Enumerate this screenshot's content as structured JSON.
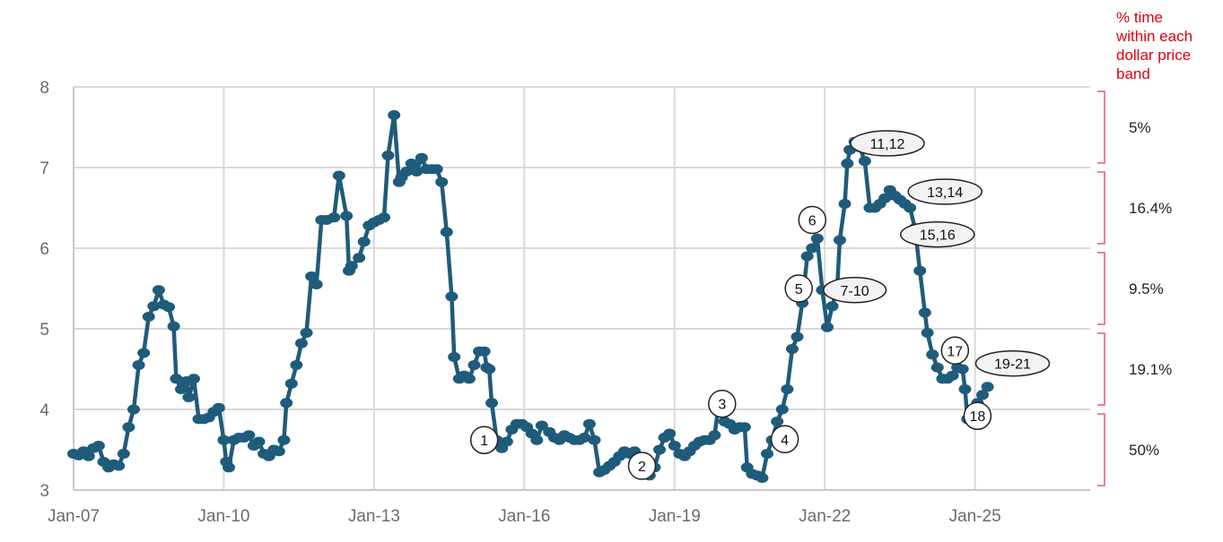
{
  "chart_data": {
    "type": "line",
    "title": "",
    "xlabel": "",
    "ylabel": "",
    "xlim": [
      2007,
      2027.3
    ],
    "ylim": [
      3,
      8
    ],
    "y_ticks": [
      "3",
      "4",
      "5",
      "6",
      "7",
      "8"
    ],
    "x_ticks": [
      {
        "label": "Jan-07",
        "x": 2007
      },
      {
        "label": "Jan-10",
        "x": 2010
      },
      {
        "label": "Jan-13",
        "x": 2013
      },
      {
        "label": "Jan-16",
        "x": 2016
      },
      {
        "label": "Jan-19",
        "x": 2019
      },
      {
        "label": "Jan-22",
        "x": 2022
      },
      {
        "label": "Jan-25",
        "x": 2025
      }
    ],
    "grid": true,
    "series": [
      {
        "color": "#1f5b7a",
        "points": [
          [
            2007.0,
            3.45
          ],
          [
            2007.1,
            3.43
          ],
          [
            2007.2,
            3.48
          ],
          [
            2007.3,
            3.42
          ],
          [
            2007.4,
            3.52
          ],
          [
            2007.5,
            3.55
          ],
          [
            2007.6,
            3.35
          ],
          [
            2007.7,
            3.28
          ],
          [
            2007.8,
            3.32
          ],
          [
            2007.9,
            3.3
          ],
          [
            2008.0,
            3.45
          ],
          [
            2008.1,
            3.78
          ],
          [
            2008.2,
            4.0
          ],
          [
            2008.3,
            4.55
          ],
          [
            2008.4,
            4.7
          ],
          [
            2008.5,
            5.15
          ],
          [
            2008.6,
            5.28
          ],
          [
            2008.7,
            5.48
          ],
          [
            2008.8,
            5.3
          ],
          [
            2008.9,
            5.27
          ],
          [
            2009.0,
            5.03
          ],
          [
            2009.05,
            4.38
          ],
          [
            2009.15,
            4.25
          ],
          [
            2009.25,
            4.35
          ],
          [
            2009.3,
            4.15
          ],
          [
            2009.4,
            4.38
          ],
          [
            2009.5,
            3.88
          ],
          [
            2009.6,
            3.88
          ],
          [
            2009.7,
            3.9
          ],
          [
            2009.8,
            3.97
          ],
          [
            2009.9,
            4.02
          ],
          [
            2010.0,
            3.62
          ],
          [
            2010.05,
            3.35
          ],
          [
            2010.1,
            3.28
          ],
          [
            2010.2,
            3.62
          ],
          [
            2010.3,
            3.65
          ],
          [
            2010.4,
            3.65
          ],
          [
            2010.5,
            3.68
          ],
          [
            2010.6,
            3.55
          ],
          [
            2010.7,
            3.6
          ],
          [
            2010.8,
            3.45
          ],
          [
            2010.9,
            3.42
          ],
          [
            2011.0,
            3.5
          ],
          [
            2011.1,
            3.48
          ],
          [
            2011.2,
            3.62
          ],
          [
            2011.25,
            4.08
          ],
          [
            2011.35,
            4.32
          ],
          [
            2011.45,
            4.55
          ],
          [
            2011.55,
            4.82
          ],
          [
            2011.65,
            4.95
          ],
          [
            2011.75,
            5.65
          ],
          [
            2011.85,
            5.55
          ],
          [
            2011.95,
            6.35
          ],
          [
            2012.05,
            6.35
          ],
          [
            2012.2,
            6.38
          ],
          [
            2012.3,
            6.9
          ],
          [
            2012.45,
            6.4
          ],
          [
            2012.5,
            5.72
          ],
          [
            2012.55,
            5.78
          ],
          [
            2012.7,
            5.88
          ],
          [
            2012.8,
            6.08
          ],
          [
            2012.9,
            6.28
          ],
          [
            2013.0,
            6.32
          ],
          [
            2013.1,
            6.35
          ],
          [
            2013.2,
            6.38
          ],
          [
            2013.28,
            7.15
          ],
          [
            2013.4,
            7.65
          ],
          [
            2013.5,
            6.82
          ],
          [
            2013.55,
            6.88
          ],
          [
            2013.65,
            6.95
          ],
          [
            2013.75,
            7.05
          ],
          [
            2013.85,
            6.95
          ],
          [
            2013.95,
            7.12
          ],
          [
            2014.05,
            6.98
          ],
          [
            2014.15,
            6.98
          ],
          [
            2014.25,
            6.98
          ],
          [
            2014.35,
            6.82
          ],
          [
            2014.45,
            6.2
          ],
          [
            2014.55,
            5.4
          ],
          [
            2014.6,
            4.65
          ],
          [
            2014.7,
            4.38
          ],
          [
            2014.8,
            4.42
          ],
          [
            2014.9,
            4.38
          ],
          [
            2015.0,
            4.55
          ],
          [
            2015.1,
            4.72
          ],
          [
            2015.2,
            4.72
          ],
          [
            2015.25,
            4.52
          ],
          [
            2015.3,
            4.5
          ],
          [
            2015.35,
            4.08
          ],
          [
            2015.45,
            3.62
          ],
          [
            2015.55,
            3.52
          ],
          [
            2015.65,
            3.6
          ],
          [
            2015.75,
            3.75
          ],
          [
            2015.85,
            3.82
          ],
          [
            2015.95,
            3.82
          ],
          [
            2016.05,
            3.78
          ],
          [
            2016.15,
            3.7
          ],
          [
            2016.25,
            3.62
          ],
          [
            2016.35,
            3.8
          ],
          [
            2016.5,
            3.72
          ],
          [
            2016.6,
            3.65
          ],
          [
            2016.7,
            3.62
          ],
          [
            2016.8,
            3.68
          ],
          [
            2016.9,
            3.65
          ],
          [
            2017.0,
            3.62
          ],
          [
            2017.1,
            3.62
          ],
          [
            2017.2,
            3.65
          ],
          [
            2017.3,
            3.82
          ],
          [
            2017.4,
            3.62
          ],
          [
            2017.5,
            3.22
          ],
          [
            2017.6,
            3.25
          ],
          [
            2017.7,
            3.3
          ],
          [
            2017.8,
            3.35
          ],
          [
            2017.9,
            3.42
          ],
          [
            2018.0,
            3.48
          ],
          [
            2018.1,
            3.45
          ],
          [
            2018.2,
            3.48
          ],
          [
            2018.3,
            3.35
          ],
          [
            2018.4,
            3.25
          ],
          [
            2018.5,
            3.18
          ],
          [
            2018.6,
            3.28
          ],
          [
            2018.7,
            3.5
          ],
          [
            2018.8,
            3.65
          ],
          [
            2018.9,
            3.7
          ],
          [
            2019.0,
            3.55
          ],
          [
            2019.1,
            3.45
          ],
          [
            2019.2,
            3.42
          ],
          [
            2019.3,
            3.48
          ],
          [
            2019.4,
            3.55
          ],
          [
            2019.5,
            3.6
          ],
          [
            2019.6,
            3.62
          ],
          [
            2019.7,
            3.62
          ],
          [
            2019.8,
            3.68
          ],
          [
            2019.9,
            4.15
          ],
          [
            2020.0,
            3.85
          ],
          [
            2020.1,
            3.82
          ],
          [
            2020.2,
            3.75
          ],
          [
            2020.3,
            3.78
          ],
          [
            2020.4,
            3.78
          ],
          [
            2020.45,
            3.28
          ],
          [
            2020.55,
            3.2
          ],
          [
            2020.65,
            3.18
          ],
          [
            2020.75,
            3.15
          ],
          [
            2020.85,
            3.45
          ],
          [
            2020.95,
            3.62
          ],
          [
            2021.05,
            3.85
          ],
          [
            2021.15,
            4.0
          ],
          [
            2021.25,
            4.25
          ],
          [
            2021.35,
            4.75
          ],
          [
            2021.45,
            4.9
          ],
          [
            2021.55,
            5.32
          ],
          [
            2021.65,
            5.9
          ],
          [
            2021.75,
            6.0
          ],
          [
            2021.85,
            6.12
          ],
          [
            2021.95,
            5.48
          ],
          [
            2022.05,
            5.02
          ],
          [
            2022.15,
            5.28
          ],
          [
            2022.25,
            5.52
          ],
          [
            2022.3,
            6.1
          ],
          [
            2022.4,
            6.55
          ],
          [
            2022.45,
            7.05
          ],
          [
            2022.5,
            7.22
          ],
          [
            2022.6,
            7.32
          ],
          [
            2022.7,
            7.25
          ],
          [
            2022.8,
            7.08
          ],
          [
            2022.9,
            6.5
          ],
          [
            2023.0,
            6.5
          ],
          [
            2023.1,
            6.55
          ],
          [
            2023.2,
            6.62
          ],
          [
            2023.3,
            6.72
          ],
          [
            2023.4,
            6.65
          ],
          [
            2023.5,
            6.6
          ],
          [
            2023.6,
            6.55
          ],
          [
            2023.7,
            6.5
          ],
          [
            2023.8,
            6.25
          ],
          [
            2023.9,
            5.72
          ],
          [
            2024.0,
            5.2
          ],
          [
            2024.05,
            4.95
          ],
          [
            2024.15,
            4.68
          ],
          [
            2024.25,
            4.52
          ],
          [
            2024.35,
            4.38
          ],
          [
            2024.45,
            4.38
          ],
          [
            2024.55,
            4.42
          ],
          [
            2024.65,
            4.52
          ],
          [
            2024.75,
            4.5
          ],
          [
            2024.8,
            4.25
          ],
          [
            2024.85,
            3.88
          ],
          [
            2024.95,
            4.0
          ],
          [
            2025.05,
            4.08
          ],
          [
            2025.15,
            4.18
          ],
          [
            2025.25,
            4.28
          ]
        ]
      }
    ],
    "annotations": [
      {
        "text": "1",
        "x": 2015.2,
        "y": 3.62,
        "shape": "circle"
      },
      {
        "text": "2",
        "x": 2018.35,
        "y": 3.3,
        "shape": "circle"
      },
      {
        "text": "3",
        "x": 2019.95,
        "y": 4.07,
        "shape": "circle"
      },
      {
        "text": "4",
        "x": 2021.2,
        "y": 3.63,
        "shape": "circle"
      },
      {
        "text": "5",
        "x": 2021.48,
        "y": 5.5,
        "shape": "circle"
      },
      {
        "text": "6",
        "x": 2021.75,
        "y": 6.35,
        "shape": "circle"
      },
      {
        "text": "7-10",
        "x": 2022.6,
        "y": 5.48,
        "shape": "ellipse"
      },
      {
        "text": "11,12",
        "x": 2023.25,
        "y": 7.3,
        "shape": "ellipse"
      },
      {
        "text": "13,14",
        "x": 2024.4,
        "y": 6.7,
        "shape": "ellipse"
      },
      {
        "text": "15,16",
        "x": 2024.25,
        "y": 6.17,
        "shape": "ellipse"
      },
      {
        "text": "17",
        "x": 2024.6,
        "y": 4.73,
        "shape": "circle"
      },
      {
        "text": "18",
        "x": 2025.05,
        "y": 3.92,
        "shape": "circle"
      },
      {
        "text": "19-21",
        "x": 2025.75,
        "y": 4.57,
        "shape": "ellipse"
      }
    ],
    "bands": {
      "title": [
        "% time",
        "within each",
        "dollar price",
        "band"
      ],
      "title_color": "#e0000f",
      "bracket_color": "#e0587a",
      "items": [
        {
          "label": "5%",
          "from": 7,
          "to": 8
        },
        {
          "label": "16.4%",
          "from": 6,
          "to": 7
        },
        {
          "label": "9.5%",
          "from": 5,
          "to": 6
        },
        {
          "label": "19.1%",
          "from": 4,
          "to": 5
        },
        {
          "label": "50%",
          "from": 3,
          "to": 4
        }
      ]
    }
  }
}
